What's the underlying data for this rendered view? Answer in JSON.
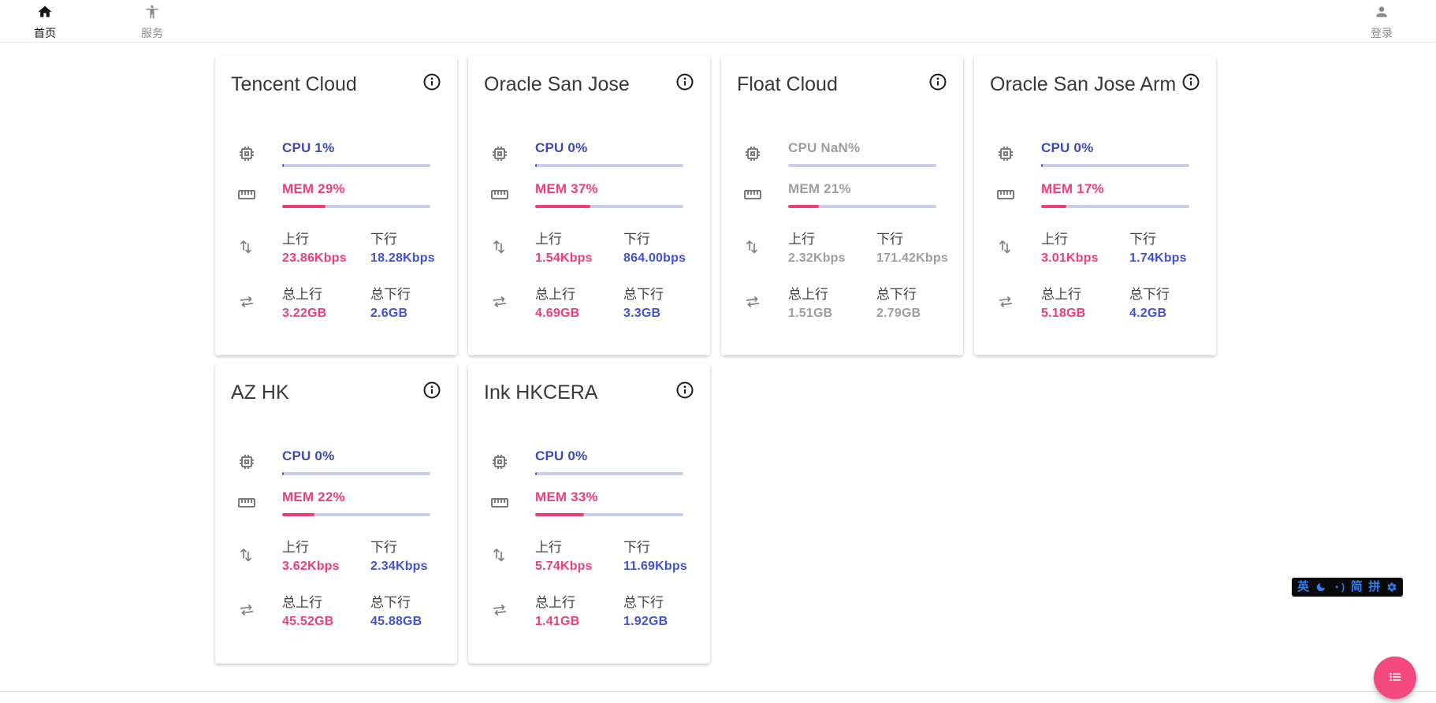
{
  "header": {
    "nav": [
      {
        "label": "首页",
        "active": true
      },
      {
        "label": "服务",
        "active": false
      }
    ],
    "login_label": "登录"
  },
  "labels": {
    "upload": "上行",
    "download": "下行",
    "total_upload": "总上行",
    "total_download": "总下行"
  },
  "servers": [
    {
      "name": "Tencent Cloud",
      "cpu_label": "CPU 1%",
      "cpu_pct": 1,
      "mem_label": "MEM 29%",
      "mem_pct": 29,
      "upload": "23.86Kbps",
      "download": "18.28Kbps",
      "total_upload": "3.22GB",
      "total_download": "2.6GB",
      "online": true
    },
    {
      "name": "Oracle San Jose",
      "cpu_label": "CPU 0%",
      "cpu_pct": 0,
      "mem_label": "MEM 37%",
      "mem_pct": 37,
      "upload": "1.54Kbps",
      "download": "864.00bps",
      "total_upload": "4.69GB",
      "total_download": "3.3GB",
      "online": true
    },
    {
      "name": "Float Cloud",
      "cpu_label": "CPU NaN%",
      "cpu_pct": null,
      "mem_label": "MEM 21%",
      "mem_pct": 21,
      "upload": "2.32Kbps",
      "download": "171.42Kbps",
      "total_upload": "1.51GB",
      "total_download": "2.79GB",
      "online": false
    },
    {
      "name": "Oracle San Jose Arm",
      "cpu_label": "CPU 0%",
      "cpu_pct": 0,
      "mem_label": "MEM 17%",
      "mem_pct": 17,
      "upload": "3.01Kbps",
      "download": "1.74Kbps",
      "total_upload": "5.18GB",
      "total_download": "4.2GB",
      "online": true
    },
    {
      "name": "AZ HK",
      "cpu_label": "CPU 0%",
      "cpu_pct": 0,
      "mem_label": "MEM 22%",
      "mem_pct": 22,
      "upload": "3.62Kbps",
      "download": "2.34Kbps",
      "total_upload": "45.52GB",
      "total_download": "45.88GB",
      "online": true
    },
    {
      "name": "Ink HKCERA",
      "cpu_label": "CPU 0%",
      "cpu_pct": 0,
      "mem_label": "MEM 33%",
      "mem_pct": 33,
      "upload": "5.74Kbps",
      "download": "11.69Kbps",
      "total_upload": "1.41GB",
      "total_download": "1.92GB",
      "online": true
    }
  ],
  "ime": {
    "lang": "英",
    "punct": "・)",
    "simplified": "简",
    "pinyin": "拼"
  },
  "colors": {
    "accent_blue": "#3b4bb5",
    "value_blue": "#4152d4",
    "accent_pink": "#ef3d77",
    "offline_gray": "#9e9e9e",
    "bar_track": "#c9cdec",
    "fab_pink": "#f3497f",
    "ime_blue": "#2e7ff0"
  }
}
